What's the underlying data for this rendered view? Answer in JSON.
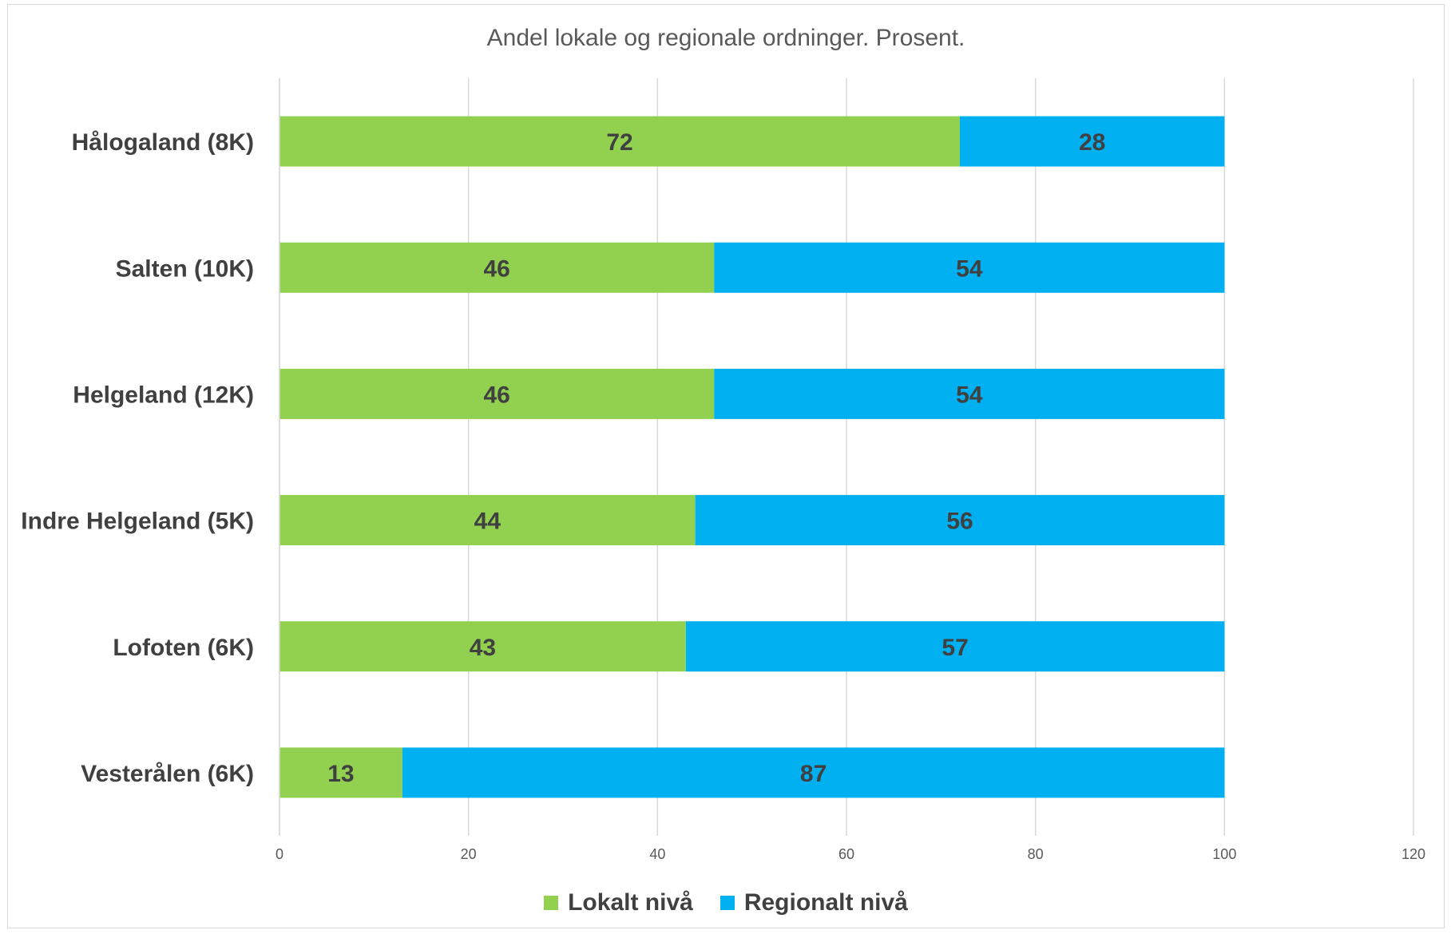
{
  "chart_data": {
    "type": "bar",
    "orientation": "horizontal",
    "stacked": true,
    "title": "Andel lokale og regionale ordninger. Prosent.",
    "categories": [
      "Hålogaland (8K)",
      "Salten (10K)",
      "Helgeland (12K)",
      "Indre Helgeland (5K)",
      "Lofoten (6K)",
      "Vesterålen (6K)"
    ],
    "series": [
      {
        "name": "Lokalt nivå",
        "color": "#92d050",
        "values": [
          72,
          46,
          46,
          44,
          43,
          13
        ]
      },
      {
        "name": "Regionalt nivå",
        "color": "#00b0f0",
        "values": [
          28,
          54,
          54,
          56,
          57,
          87
        ]
      }
    ],
    "xlim": [
      0,
      120
    ],
    "xticks": [
      "0",
      "20",
      "40",
      "60",
      "80",
      "100",
      "120"
    ],
    "xlabel": "",
    "ylabel": "",
    "grid": true,
    "legend_position": "bottom"
  }
}
